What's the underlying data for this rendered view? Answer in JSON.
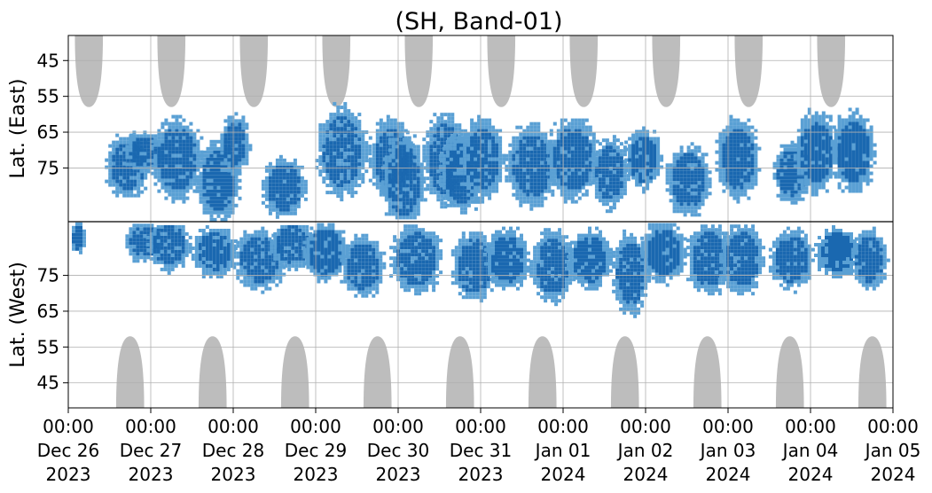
{
  "chart_data": {
    "type": "heatmap",
    "title": "(SH, Band-01)",
    "ylabel_top": "Lat. (East)",
    "ylabel_bottom": "Lat. (West)",
    "xlabel": "",
    "grid": true,
    "x_range": [
      "2023-12-26T00:00",
      "2024-01-05T00:00"
    ],
    "x_ticks": [
      {
        "line1": "00:00",
        "line2": "Dec 26",
        "line3": "2023"
      },
      {
        "line1": "00:00",
        "line2": "Dec 27",
        "line3": "2023"
      },
      {
        "line1": "00:00",
        "line2": "Dec 28",
        "line3": "2023"
      },
      {
        "line1": "00:00",
        "line2": "Dec 29",
        "line3": "2023"
      },
      {
        "line1": "00:00",
        "line2": "Dec 30",
        "line3": "2023"
      },
      {
        "line1": "00:00",
        "line2": "Dec 31",
        "line3": "2023"
      },
      {
        "line1": "00:00",
        "line2": "Jan 01",
        "line3": "2024"
      },
      {
        "line1": "00:00",
        "line2": "Jan 02",
        "line3": "2024"
      },
      {
        "line1": "00:00",
        "line2": "Jan 03",
        "line3": "2024"
      },
      {
        "line1": "00:00",
        "line2": "Jan 04",
        "line3": "2024"
      },
      {
        "line1": "00:00",
        "line2": "Jan 05",
        "line3": "2024"
      }
    ],
    "y_ticks_east": [
      "45",
      "55",
      "65",
      "75"
    ],
    "y_ticks_west": [
      "75",
      "65",
      "55",
      "45"
    ],
    "y_range": [
      38,
      90
    ],
    "daylight_bands": {
      "color": "#bdbdbd",
      "east_centers_day": [
        0.25,
        1.25,
        2.25,
        3.25,
        4.25,
        5.25,
        6.25,
        7.25,
        8.25,
        9.25
      ],
      "west_centers_day": [
        0.75,
        1.75,
        2.75,
        3.75,
        4.75,
        5.75,
        6.75,
        7.75,
        8.75,
        9.75
      ],
      "edge_latitude": 58
    },
    "series": [
      {
        "name": "",
        "color_strong": "#1a68b0",
        "color_weak": "#5aa0d4",
        "blobs": [
          {
            "day": 0.1,
            "hemi": "west",
            "lat": 86,
            "dlat": 3,
            "dday": 0.1
          },
          {
            "day": 0.7,
            "hemi": "east",
            "lat": 74,
            "dlat": 6,
            "dday": 0.3
          },
          {
            "day": 0.9,
            "hemi": "east",
            "lat": 70,
            "dlat": 4,
            "dday": 0.25
          },
          {
            "day": 0.9,
            "hemi": "west",
            "lat": 85,
            "dlat": 4,
            "dday": 0.25
          },
          {
            "day": 1.3,
            "hemi": "east",
            "lat": 72,
            "dlat": 8,
            "dday": 0.35
          },
          {
            "day": 1.2,
            "hemi": "west",
            "lat": 84,
            "dlat": 5,
            "dday": 0.3
          },
          {
            "day": 1.8,
            "hemi": "east",
            "lat": 78,
            "dlat": 8,
            "dday": 0.3
          },
          {
            "day": 1.75,
            "hemi": "west",
            "lat": 82,
            "dlat": 5,
            "dday": 0.3
          },
          {
            "day": 2.0,
            "hemi": "east",
            "lat": 68,
            "dlat": 6,
            "dday": 0.2
          },
          {
            "day": 2.3,
            "hemi": "west",
            "lat": 80,
            "dlat": 6,
            "dday": 0.35
          },
          {
            "day": 2.6,
            "hemi": "east",
            "lat": 80,
            "dlat": 6,
            "dday": 0.3
          },
          {
            "day": 2.7,
            "hemi": "west",
            "lat": 84,
            "dlat": 5,
            "dday": 0.3
          },
          {
            "day": 3.1,
            "hemi": "west",
            "lat": 82,
            "dlat": 6,
            "dday": 0.3
          },
          {
            "day": 3.3,
            "hemi": "east",
            "lat": 70,
            "dlat": 9,
            "dday": 0.35
          },
          {
            "day": 3.55,
            "hemi": "west",
            "lat": 78,
            "dlat": 6,
            "dday": 0.3
          },
          {
            "day": 3.9,
            "hemi": "east",
            "lat": 72,
            "dlat": 8,
            "dday": 0.3
          },
          {
            "day": 4.05,
            "hemi": "east",
            "lat": 78,
            "dlat": 9,
            "dday": 0.3
          },
          {
            "day": 4.2,
            "hemi": "west",
            "lat": 80,
            "dlat": 7,
            "dday": 0.35
          },
          {
            "day": 4.55,
            "hemi": "east",
            "lat": 72,
            "dlat": 9,
            "dday": 0.3
          },
          {
            "day": 4.9,
            "hemi": "west",
            "lat": 78,
            "dlat": 7,
            "dday": 0.3
          },
          {
            "day": 4.75,
            "hemi": "east",
            "lat": 76,
            "dlat": 8,
            "dday": 0.3
          },
          {
            "day": 5.0,
            "hemi": "east",
            "lat": 72,
            "dlat": 8,
            "dday": 0.3
          },
          {
            "day": 5.3,
            "hemi": "west",
            "lat": 80,
            "dlat": 6,
            "dday": 0.3
          },
          {
            "day": 5.6,
            "hemi": "east",
            "lat": 74,
            "dlat": 8,
            "dday": 0.35
          },
          {
            "day": 5.85,
            "hemi": "west",
            "lat": 78,
            "dlat": 7,
            "dday": 0.3
          },
          {
            "day": 6.1,
            "hemi": "east",
            "lat": 72,
            "dlat": 8,
            "dday": 0.35
          },
          {
            "day": 6.3,
            "hemi": "west",
            "lat": 80,
            "dlat": 6,
            "dday": 0.3
          },
          {
            "day": 6.55,
            "hemi": "east",
            "lat": 76,
            "dlat": 7,
            "dday": 0.25
          },
          {
            "day": 6.8,
            "hemi": "west",
            "lat": 76,
            "dlat": 8,
            "dday": 0.25
          },
          {
            "day": 6.95,
            "hemi": "east",
            "lat": 72,
            "dlat": 6,
            "dday": 0.25
          },
          {
            "day": 7.2,
            "hemi": "west",
            "lat": 82,
            "dlat": 6,
            "dday": 0.3
          },
          {
            "day": 7.5,
            "hemi": "east",
            "lat": 78,
            "dlat": 7,
            "dday": 0.3
          },
          {
            "day": 7.75,
            "hemi": "west",
            "lat": 80,
            "dlat": 7,
            "dday": 0.3
          },
          {
            "day": 8.1,
            "hemi": "east",
            "lat": 72,
            "dlat": 8,
            "dday": 0.3
          },
          {
            "day": 8.15,
            "hemi": "west",
            "lat": 80,
            "dlat": 7,
            "dday": 0.3
          },
          {
            "day": 8.75,
            "hemi": "east",
            "lat": 76,
            "dlat": 6,
            "dday": 0.25
          },
          {
            "day": 8.75,
            "hemi": "west",
            "lat": 80,
            "dlat": 6,
            "dday": 0.3
          },
          {
            "day": 9.05,
            "hemi": "east",
            "lat": 70,
            "dlat": 8,
            "dday": 0.3
          },
          {
            "day": 9.3,
            "hemi": "west",
            "lat": 82,
            "dlat": 5,
            "dday": 0.3
          },
          {
            "day": 9.5,
            "hemi": "east",
            "lat": 70,
            "dlat": 8,
            "dday": 0.3
          },
          {
            "day": 9.7,
            "hemi": "west",
            "lat": 80,
            "dlat": 6,
            "dday": 0.25
          }
        ]
      }
    ]
  }
}
